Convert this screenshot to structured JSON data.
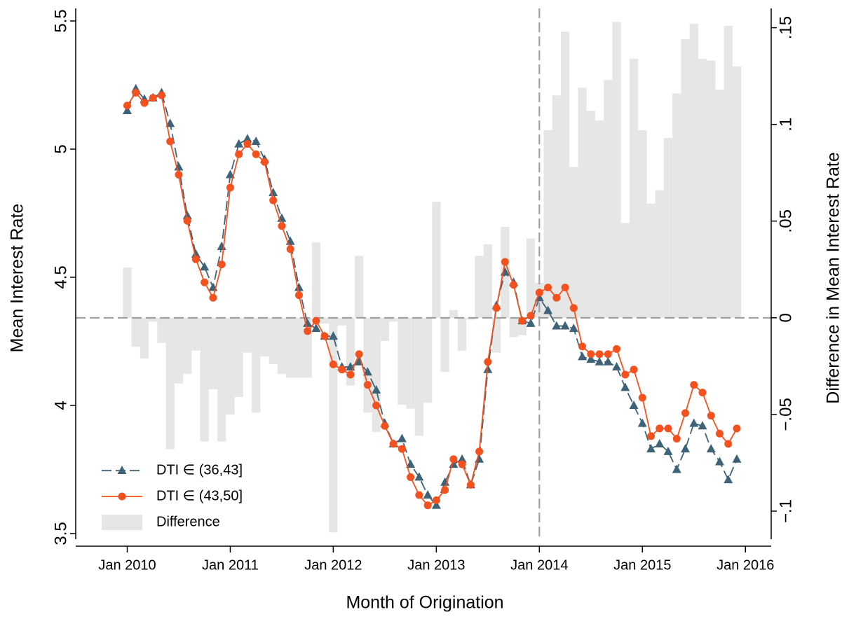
{
  "chart_data": {
    "type": "line",
    "x_title": "Month of Origination",
    "y_title": "Mean Interest Rate",
    "y2_title": "Difference in Mean Interest Rate",
    "x": [
      "2010-01",
      "2010-02",
      "2010-03",
      "2010-04",
      "2010-05",
      "2010-06",
      "2010-07",
      "2010-08",
      "2010-09",
      "2010-10",
      "2010-11",
      "2010-12",
      "2011-01",
      "2011-02",
      "2011-03",
      "2011-04",
      "2011-05",
      "2011-06",
      "2011-07",
      "2011-08",
      "2011-09",
      "2011-10",
      "2011-11",
      "2011-12",
      "2012-01",
      "2012-02",
      "2012-03",
      "2012-04",
      "2012-05",
      "2012-06",
      "2012-07",
      "2012-08",
      "2012-09",
      "2012-10",
      "2012-11",
      "2012-12",
      "2013-01",
      "2013-02",
      "2013-03",
      "2013-04",
      "2013-05",
      "2013-06",
      "2013-07",
      "2013-08",
      "2013-09",
      "2013-10",
      "2013-11",
      "2013-12",
      "2014-01",
      "2014-02",
      "2014-03",
      "2014-04",
      "2014-05",
      "2014-06",
      "2014-07",
      "2014-08",
      "2014-09",
      "2014-10",
      "2014-11",
      "2014-12",
      "2015-01",
      "2015-02",
      "2015-03",
      "2015-04",
      "2015-05",
      "2015-06",
      "2015-07",
      "2015-08",
      "2015-09",
      "2015-10",
      "2015-11",
      "2015-12"
    ],
    "series": [
      {
        "name": "Difference",
        "type": "bar",
        "axis": "y2",
        "color": "#e6e6e6",
        "values": [
          0.026,
          -0.015,
          -0.021,
          -0.002,
          -0.013,
          -0.068,
          -0.034,
          -0.029,
          -0.017,
          -0.064,
          -0.037,
          -0.064,
          -0.05,
          -0.041,
          -0.018,
          -0.049,
          -0.02,
          -0.024,
          -0.029,
          -0.031,
          -0.031,
          -0.031,
          0.039,
          -0.003,
          -0.111,
          -0.004,
          -0.035,
          0.032,
          -0.049,
          -0.059,
          -0.012,
          -0.002,
          -0.045,
          -0.047,
          -0.061,
          -0.044,
          0.06,
          -0.028,
          0.004,
          -0.017,
          -0.001,
          0.032,
          0.038,
          -0.018,
          0.047,
          -0.01,
          -0.009,
          0.041,
          0.018,
          0.097,
          0.115,
          0.148,
          0.078,
          0.119,
          0.107,
          0.102,
          0.123,
          0.153,
          0.049,
          0.134,
          0.097,
          0.059,
          0.066,
          0.093,
          0.116,
          0.144,
          0.152,
          0.134,
          0.133,
          0.118,
          0.151,
          0.13
        ]
      },
      {
        "name": "DTI ∈ (36,43]",
        "type": "line",
        "marker": "triangle",
        "dash": true,
        "color": "#3e6378",
        "values": [
          5.15,
          5.235,
          5.195,
          5.2,
          5.22,
          5.1,
          4.93,
          4.74,
          4.59,
          4.54,
          4.46,
          4.62,
          4.9,
          5.02,
          5.04,
          5.03,
          4.96,
          4.83,
          4.73,
          4.64,
          4.46,
          4.32,
          4.3,
          4.27,
          4.27,
          4.15,
          4.15,
          4.17,
          4.13,
          4.06,
          3.93,
          3.85,
          3.87,
          3.77,
          3.72,
          3.65,
          3.61,
          3.7,
          3.77,
          3.79,
          3.69,
          3.79,
          4.14,
          4.39,
          4.52,
          4.48,
          4.33,
          4.32,
          4.42,
          4.37,
          4.31,
          4.31,
          4.3,
          4.19,
          4.18,
          4.17,
          4.17,
          4.15,
          4.07,
          4.0,
          3.93,
          3.83,
          3.85,
          3.82,
          3.75,
          3.83,
          3.93,
          3.92,
          3.83,
          3.78,
          3.71,
          3.79
        ]
      },
      {
        "name": "DTI ∈ (43,50]",
        "type": "line",
        "marker": "circle",
        "dash": false,
        "color": "#f4511e",
        "values": [
          5.17,
          5.22,
          5.18,
          5.2,
          5.21,
          5.03,
          4.9,
          4.72,
          4.57,
          4.48,
          4.42,
          4.55,
          4.85,
          4.98,
          5.02,
          4.98,
          4.95,
          4.8,
          4.7,
          4.61,
          4.43,
          4.29,
          4.33,
          4.27,
          4.16,
          4.14,
          4.12,
          4.2,
          4.08,
          4.0,
          3.92,
          3.85,
          3.83,
          3.72,
          3.65,
          3.61,
          3.63,
          3.67,
          3.79,
          3.77,
          3.69,
          3.82,
          4.17,
          4.38,
          4.56,
          4.47,
          4.33,
          4.35,
          4.44,
          4.46,
          4.42,
          4.46,
          4.38,
          4.23,
          4.2,
          4.2,
          4.2,
          4.22,
          4.12,
          4.14,
          4.03,
          3.88,
          3.91,
          3.91,
          3.87,
          3.97,
          4.08,
          4.05,
          3.96,
          3.89,
          3.85,
          3.91
        ]
      }
    ],
    "xlim": [
      "2009-07",
      "2016-04"
    ],
    "xticks": [
      {
        "value": "2010-01",
        "label": "Jan 2010"
      },
      {
        "value": "2011-01",
        "label": "Jan 2011"
      },
      {
        "value": "2012-01",
        "label": "Jan 2012"
      },
      {
        "value": "2013-01",
        "label": "Jan 2013"
      },
      {
        "value": "2014-01",
        "label": "Jan 2014"
      },
      {
        "value": "2015-01",
        "label": "Jan 2015"
      },
      {
        "value": "2016-01",
        "label": "Jan 2016"
      }
    ],
    "ylim": [
      3.478,
      5.549
    ],
    "yticks": [
      3.5,
      4,
      4.5,
      5,
      5.5
    ],
    "y2lim": [
      -0.1145,
      0.16
    ],
    "y2ticks": [
      {
        "value": -0.1,
        "label": "−.1"
      },
      {
        "value": -0.05,
        "label": "−.05"
      },
      {
        "value": 0,
        "label": "0"
      },
      {
        "value": 0.05,
        "label": ".05"
      },
      {
        "value": 0.1,
        "label": ".1"
      },
      {
        "value": 0.15,
        "label": ".15"
      }
    ],
    "reference_lines": {
      "y2": 0,
      "x": "2014-01"
    },
    "legend": "bottom-left"
  }
}
